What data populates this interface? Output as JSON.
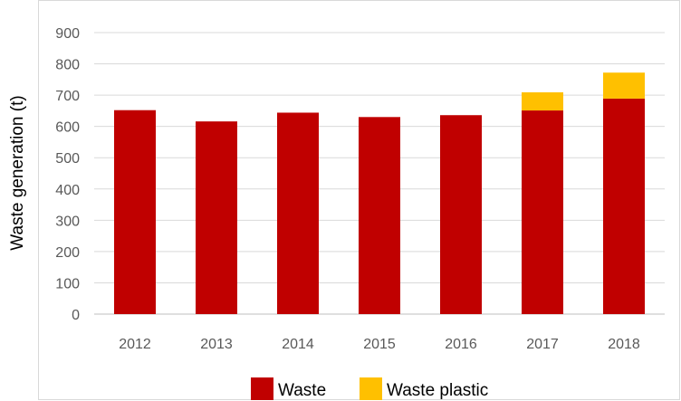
{
  "chart_data": {
    "type": "bar",
    "stacked": true,
    "categories": [
      "2012",
      "2013",
      "2014",
      "2015",
      "2016",
      "2017",
      "2018"
    ],
    "series": [
      {
        "name": "Waste",
        "values": [
          652,
          616,
          644,
          630,
          636,
          651,
          689
        ],
        "color": "#c00000"
      },
      {
        "name": "Waste plastic",
        "values": [
          0,
          0,
          0,
          0,
          0,
          58,
          83
        ],
        "color": "#ffc000"
      }
    ],
    "ylabel": "Waste generation (t)",
    "ylim": [
      0,
      900
    ],
    "yticks": [
      0,
      100,
      200,
      300,
      400,
      500,
      600,
      700,
      800,
      900
    ],
    "grid": "horizontal",
    "legend": "bottom"
  }
}
